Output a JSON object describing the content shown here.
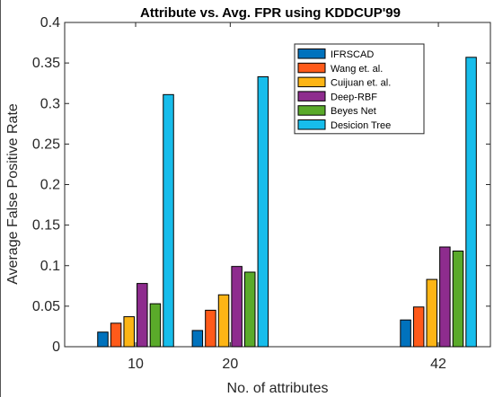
{
  "chart_data": {
    "type": "bar",
    "title": "Attribute vs. Avg. FPR using KDDCUP'99",
    "xlabel": "No. of attributes",
    "ylabel": "Average False Positive Rate",
    "x": [
      10,
      20,
      42
    ],
    "xticks": [
      "10",
      "20",
      "42"
    ],
    "xlim": [
      2.5,
      47.5
    ],
    "ylim": [
      0,
      0.4
    ],
    "yticks": [
      "0",
      "0.05",
      "0.1",
      "0.15",
      "0.2",
      "0.25",
      "0.3",
      "0.35",
      "0.4"
    ],
    "legend_position": "top-right",
    "series": [
      {
        "name": "IFRSCAD",
        "color": "#0072BD",
        "values": [
          0.018,
          0.02,
          0.033
        ]
      },
      {
        "name": "Wang et. al.",
        "color": "#FF5A1A",
        "values": [
          0.029,
          0.045,
          0.049
        ]
      },
      {
        "name": "Cuijuan et. al.",
        "color": "#FDB515",
        "values": [
          0.037,
          0.064,
          0.083
        ]
      },
      {
        "name": "Deep-RBF",
        "color": "#8E2C8E",
        "values": [
          0.078,
          0.099,
          0.123
        ]
      },
      {
        "name": "Beyes Net",
        "color": "#5AAA2A",
        "values": [
          0.053,
          0.092,
          0.118
        ]
      },
      {
        "name": "Desicion Tree",
        "color": "#17BDEB",
        "values": [
          0.311,
          0.333,
          0.357
        ]
      }
    ]
  }
}
